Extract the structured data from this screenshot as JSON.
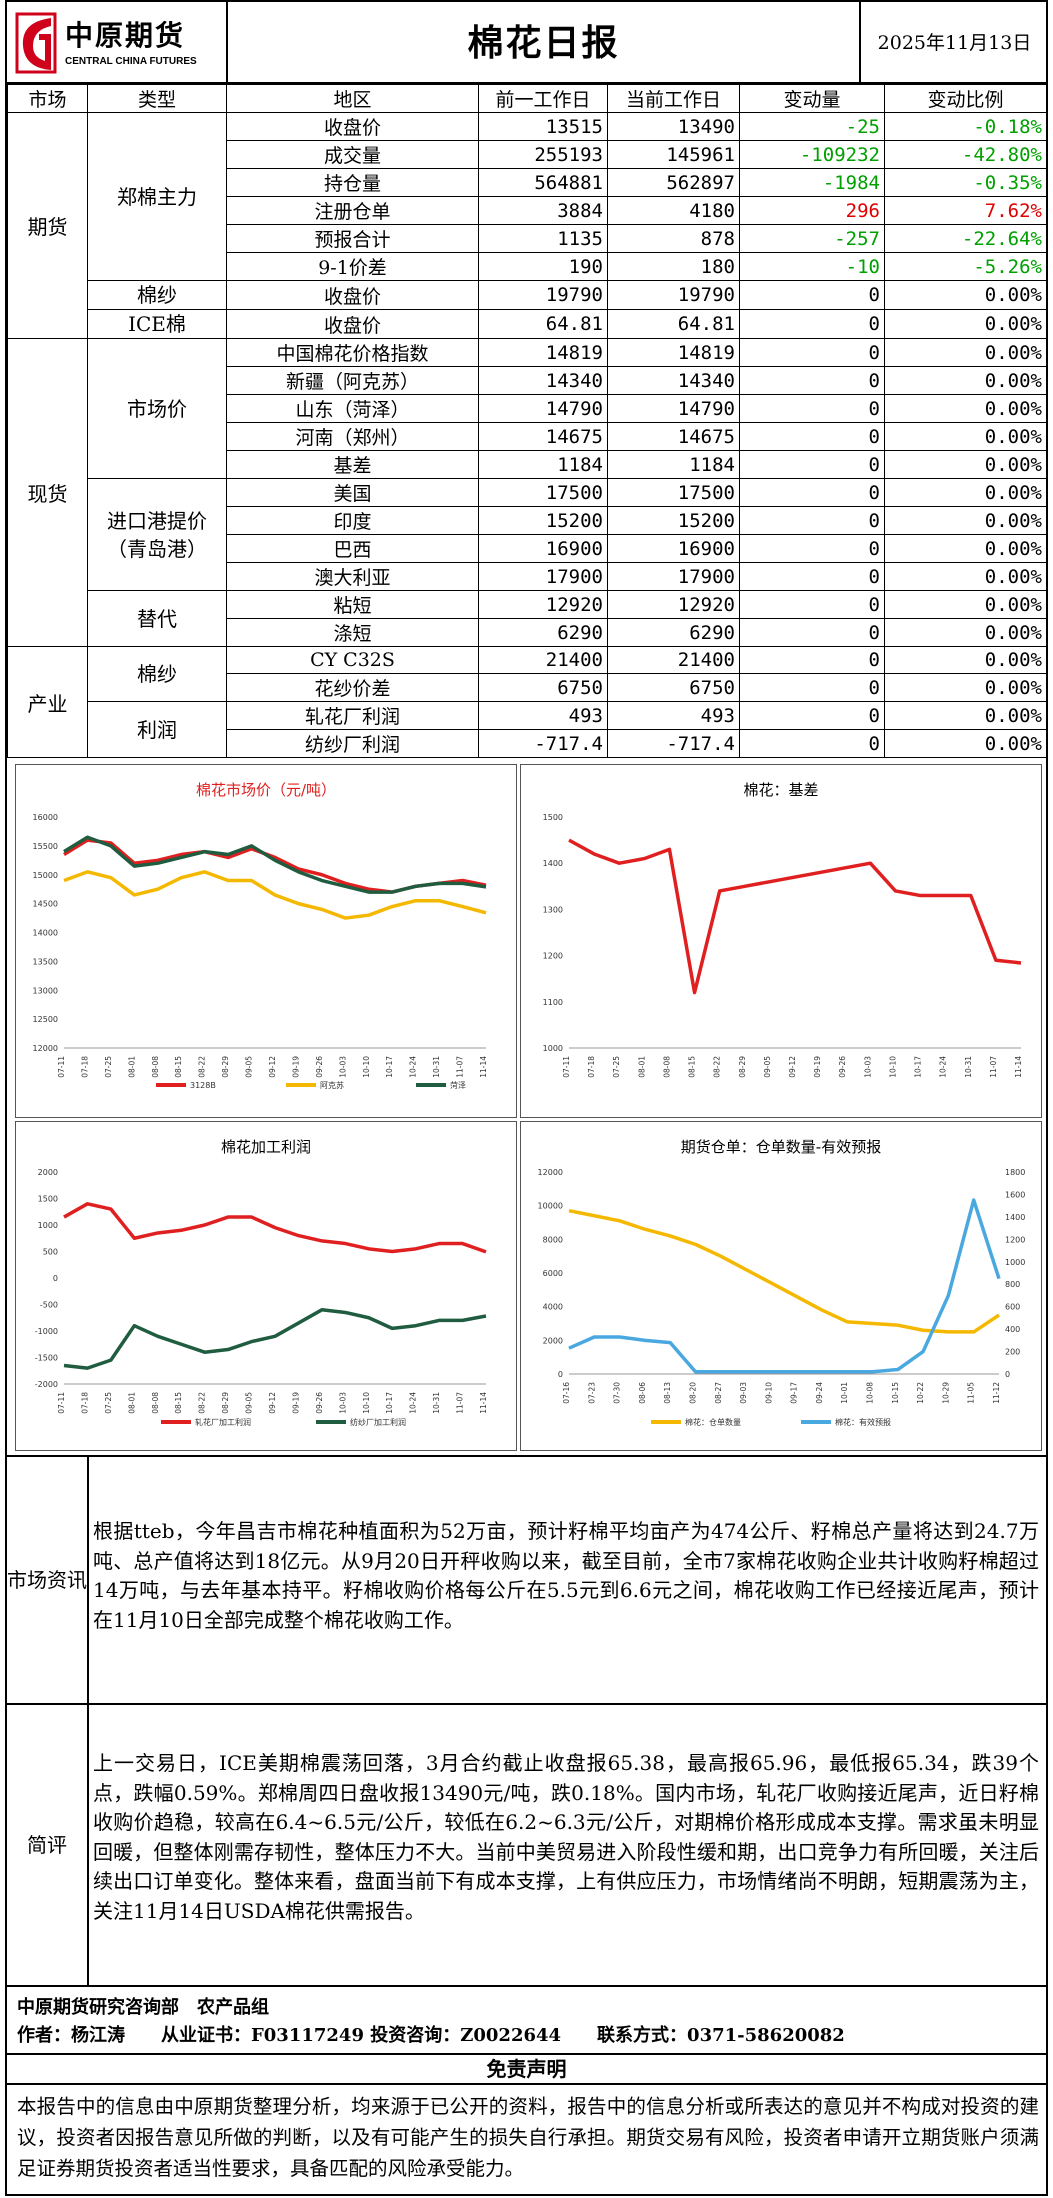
{
  "header": {
    "company_cn": "中原期货",
    "company_en": "CENTRAL CHINA FUTURES",
    "title": "棉花日报",
    "date": "2025年11月13日"
  },
  "colors": {
    "green": "#00a000",
    "red": "#e00000",
    "logo_red": "#d0021b"
  },
  "table": {
    "headers": [
      "市场",
      "类型",
      "地区",
      "前一工作日",
      "当前工作日",
      "变动量",
      "变动比例"
    ],
    "groups": {
      "futures": "期货",
      "spot": "现货",
      "industry": "产业",
      "zheng_main": "郑棉主力",
      "yarn": "棉纱",
      "ice": "ICE棉",
      "market_price": "市场价",
      "import_port": "进口港提价\n（青岛港）",
      "substitute": "替代",
      "yarn2": "棉纱",
      "profit": "利润"
    },
    "rows": [
      {
        "area": "收盘价",
        "prev": "13515",
        "cur": "13490",
        "chg": "-25",
        "pct": "-0.18%",
        "color": "g"
      },
      {
        "area": "成交量",
        "prev": "255193",
        "cur": "145961",
        "chg": "-109232",
        "pct": "-42.80%",
        "color": "g"
      },
      {
        "area": "持仓量",
        "prev": "564881",
        "cur": "562897",
        "chg": "-1984",
        "pct": "-0.35%",
        "color": "g"
      },
      {
        "area": "注册仓单",
        "prev": "3884",
        "cur": "4180",
        "chg": "296",
        "pct": "7.62%",
        "color": "r"
      },
      {
        "area": "预报合计",
        "prev": "1135",
        "cur": "878",
        "chg": "-257",
        "pct": "-22.64%",
        "color": "g"
      },
      {
        "area": "9-1价差",
        "prev": "190",
        "cur": "180",
        "chg": "-10",
        "pct": "-5.26%",
        "color": "g"
      },
      {
        "area": "收盘价",
        "prev": "19790",
        "cur": "19790",
        "chg": "0",
        "pct": "0.00%",
        "color": ""
      },
      {
        "area": "收盘价",
        "prev": "64.81",
        "cur": "64.81",
        "chg": "0",
        "pct": "0.00%",
        "color": ""
      },
      {
        "area": "中国棉花价格指数",
        "prev": "14819",
        "cur": "14819",
        "chg": "0",
        "pct": "0.00%",
        "color": ""
      },
      {
        "area": "新疆（阿克苏）",
        "prev": "14340",
        "cur": "14340",
        "chg": "0",
        "pct": "0.00%",
        "color": ""
      },
      {
        "area": "山东（菏泽）",
        "prev": "14790",
        "cur": "14790",
        "chg": "0",
        "pct": "0.00%",
        "color": ""
      },
      {
        "area": "河南（郑州）",
        "prev": "14675",
        "cur": "14675",
        "chg": "0",
        "pct": "0.00%",
        "color": ""
      },
      {
        "area": "基差",
        "prev": "1184",
        "cur": "1184",
        "chg": "0",
        "pct": "0.00%",
        "color": ""
      },
      {
        "area": "美国",
        "prev": "17500",
        "cur": "17500",
        "chg": "0",
        "pct": "0.00%",
        "color": ""
      },
      {
        "area": "印度",
        "prev": "15200",
        "cur": "15200",
        "chg": "0",
        "pct": "0.00%",
        "color": ""
      },
      {
        "area": "巴西",
        "prev": "16900",
        "cur": "16900",
        "chg": "0",
        "pct": "0.00%",
        "color": ""
      },
      {
        "area": "澳大利亚",
        "prev": "17900",
        "cur": "17900",
        "chg": "0",
        "pct": "0.00%",
        "color": ""
      },
      {
        "area": "粘短",
        "prev": "12920",
        "cur": "12920",
        "chg": "0",
        "pct": "0.00%",
        "color": ""
      },
      {
        "area": "涤短",
        "prev": "6290",
        "cur": "6290",
        "chg": "0",
        "pct": "0.00%",
        "color": ""
      },
      {
        "area": "CY C32S",
        "prev": "21400",
        "cur": "21400",
        "chg": "0",
        "pct": "0.00%",
        "color": ""
      },
      {
        "area": "花纱价差",
        "prev": "6750",
        "cur": "6750",
        "chg": "0",
        "pct": "0.00%",
        "color": ""
      },
      {
        "area": "轧花厂利润",
        "prev": "493",
        "cur": "493",
        "chg": "0",
        "pct": "0.00%",
        "color": ""
      },
      {
        "area": "纺纱厂利润",
        "prev": "-717.4",
        "cur": "-717.4",
        "chg": "0",
        "pct": "0.00%",
        "color": ""
      }
    ]
  },
  "chart_data": [
    {
      "type": "line",
      "title": "棉花市场价（元/吨）",
      "x": [
        "07-11",
        "07-18",
        "07-25",
        "08-01",
        "08-08",
        "08-15",
        "08-22",
        "08-29",
        "09-05",
        "09-12",
        "09-19",
        "09-26",
        "10-03",
        "10-10",
        "10-17",
        "10-24",
        "10-31",
        "11-07",
        "11-14"
      ],
      "ylim": [
        12000,
        16000
      ],
      "yticks": [
        12000,
        12500,
        13000,
        13500,
        14000,
        14500,
        15000,
        15500,
        16000
      ],
      "series": [
        {
          "name": "3128B",
          "color": "#e02020",
          "values": [
            15350,
            15600,
            15550,
            15200,
            15250,
            15350,
            15400,
            15300,
            15450,
            15300,
            15100,
            15000,
            14850,
            14750,
            14700,
            14800,
            14850,
            14900,
            14819
          ]
        },
        {
          "name": "阿克苏",
          "color": "#f5b800",
          "values": [
            14900,
            15050,
            14950,
            14650,
            14750,
            14950,
            15050,
            14900,
            14900,
            14650,
            14500,
            14400,
            14250,
            14300,
            14450,
            14550,
            14550,
            14450,
            14340
          ]
        },
        {
          "name": "菏泽",
          "color": "#1f5c40",
          "values": [
            15400,
            15650,
            15500,
            15150,
            15200,
            15300,
            15400,
            15350,
            15500,
            15250,
            15050,
            14900,
            14800,
            14700,
            14700,
            14800,
            14850,
            14850,
            14790
          ]
        }
      ]
    },
    {
      "type": "line",
      "title": "棉花：基差",
      "x": [
        "07-11",
        "07-18",
        "07-25",
        "08-01",
        "08-08",
        "08-15",
        "08-22",
        "08-29",
        "09-05",
        "09-12",
        "09-19",
        "09-26",
        "10-03",
        "10-10",
        "10-17",
        "10-24",
        "10-31",
        "11-07",
        "11-14"
      ],
      "ylim": [
        1000,
        1500
      ],
      "yticks": [
        1000,
        1100,
        1200,
        1300,
        1400,
        1500
      ],
      "series": [
        {
          "name": "基差",
          "color": "#e02020",
          "values": [
            1450,
            1420,
            1400,
            1410,
            1430,
            1120,
            1340,
            1350,
            1360,
            1370,
            1380,
            1390,
            1400,
            1340,
            1330,
            1330,
            1330,
            1190,
            1184
          ]
        }
      ]
    },
    {
      "type": "line",
      "title": "棉花加工利润",
      "x": [
        "07-11",
        "07-18",
        "07-25",
        "08-01",
        "08-08",
        "08-15",
        "08-22",
        "08-29",
        "09-05",
        "09-12",
        "09-19",
        "09-26",
        "10-03",
        "10-10",
        "10-17",
        "10-24",
        "10-31",
        "11-07",
        "11-14"
      ],
      "ylim": [
        -2000,
        2000
      ],
      "yticks": [
        -2000,
        -1500,
        -1000,
        -500,
        0,
        500,
        1000,
        1500,
        2000
      ],
      "series": [
        {
          "name": "轧花厂加工利润",
          "color": "#e02020",
          "values": [
            1150,
            1400,
            1300,
            750,
            850,
            900,
            1000,
            1150,
            1150,
            950,
            800,
            700,
            650,
            550,
            500,
            550,
            650,
            650,
            493
          ]
        },
        {
          "name": "纺纱厂加工利润",
          "color": "#1f5c40",
          "values": [
            -1650,
            -1700,
            -1550,
            -900,
            -1100,
            -1250,
            -1400,
            -1350,
            -1200,
            -1100,
            -850,
            -600,
            -650,
            -750,
            -950,
            -900,
            -800,
            -800,
            -717.4
          ]
        }
      ]
    },
    {
      "type": "line",
      "title": "期货仓单：仓单数量-有效预报",
      "x": [
        "07-16",
        "07-23",
        "07-30",
        "08-06",
        "08-13",
        "08-20",
        "08-27",
        "09-03",
        "09-10",
        "09-17",
        "09-24",
        "10-01",
        "10-08",
        "10-15",
        "10-22",
        "10-29",
        "11-05",
        "11-12"
      ],
      "ylim": [
        0,
        12000
      ],
      "yticks": [
        0,
        2000,
        4000,
        6000,
        8000,
        10000,
        12000
      ],
      "y2lim": [
        0,
        1800
      ],
      "y2ticks": [
        0,
        200,
        400,
        600,
        800,
        1000,
        1200,
        1400,
        1600,
        1800
      ],
      "series": [
        {
          "name": "棉花：仓单数量",
          "color": "#f5b800",
          "axis": "left",
          "values": [
            9700,
            9400,
            9100,
            8600,
            8200,
            7700,
            7000,
            6200,
            5400,
            4600,
            3800,
            3100,
            3000,
            2900,
            2600,
            2500,
            2500,
            3500
          ]
        },
        {
          "name": "棉花：有效预报",
          "color": "#4aa8e0",
          "axis": "right",
          "values": [
            230,
            330,
            330,
            300,
            280,
            20,
            20,
            20,
            20,
            20,
            20,
            20,
            20,
            40,
            200,
            700,
            1550,
            850
          ]
        }
      ]
    }
  ],
  "sections": {
    "market_label": "市场资讯",
    "market_text": "根据tteb，今年昌吉市棉花种植面积为52万亩，预计籽棉平均亩产为474公斤、籽棉总产量将达到24.7万吨、总产值将达到18亿元。从9月20日开秤收购以来，截至目前，全市7家棉花收购企业共计收购籽棉超过14万吨，与去年基本持平。籽棉收购价格每公斤在5.5元到6.6元之间，棉花收购工作已经接近尾声，预计在11月10日全部完成整个棉花收购工作。",
    "comment_label": "简评",
    "comment_text": "上一交易日，ICE美期棉震荡回落，3月合约截止收盘报65.38，最高报65.96，最低报65.34，跌39个点，跌幅0.59%。郑棉周四日盘收报13490元/吨，跌0.18%。国内市场，轧花厂收购接近尾声，近日籽棉收购价趋稳，较高在6.4~6.5元/公斤，较低在6.2~6.3元/公斤，对期棉价格形成成本支撑。需求虽未明显回暖，但整体刚需存韧性，整体压力不大。当前中美贸易进入阶段性缓和期，出口竞争力有所回暖，关注后续出口订单变化。整体来看，盘面当前下有成本支撑，上有供应压力，市场情绪尚不明朗，短期震荡为主，关注11月14日USDA棉花供需报告。"
  },
  "footer": {
    "dept": "中原期货研究咨询部　农产品组",
    "author": "作者：杨江涛　　从业证书：F03117249 投资咨询：Z0022644　　联系方式：0371-58620082",
    "disclaimer_title": "免责声明",
    "disclaimer": "本报告中的信息由中原期货整理分析，均来源于已公开的资料，报告中的信息分析或所表达的意见并不构成对投资的建议，投资者因报告意见所做的判断，以及有可能产生的损失自行承担。期货交易有风险，投资者申请开立期货账户须满足证券期货投资者适当性要求，具备匹配的风险承受能力。"
  }
}
